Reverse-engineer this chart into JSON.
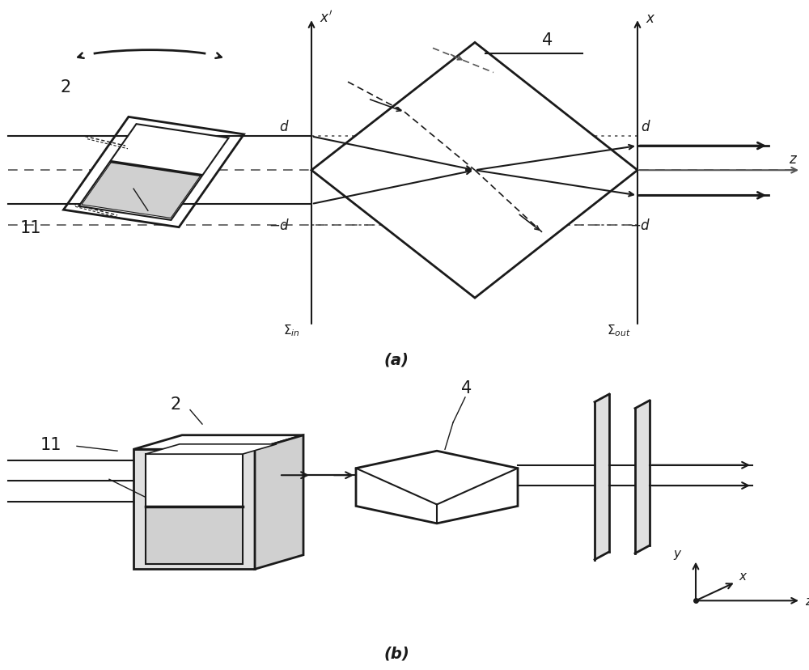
{
  "bg_color": "#ffffff",
  "panel_a_label": "(a)",
  "panel_b_label": "(b)",
  "lc": "#1a1a1a",
  "dc": "#555555",
  "fc": "#d0d0d0",
  "fc2": "#e0e0e0"
}
